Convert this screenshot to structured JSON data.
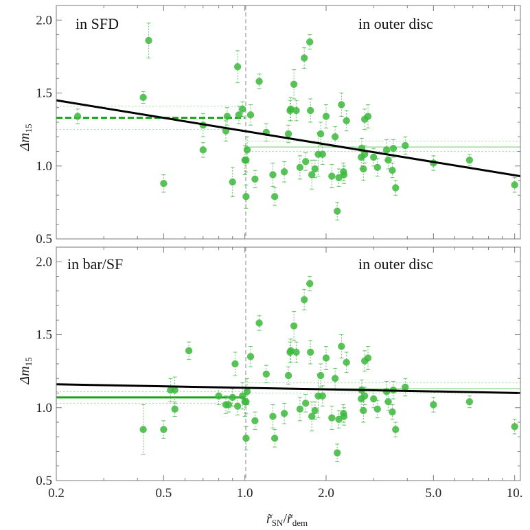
{
  "chart_data": [
    {
      "type": "scatter",
      "panel": "top",
      "annotation_left": "in SFD",
      "annotation_right": "in outer disc",
      "ylabel": "Δm15",
      "xscale": "log",
      "xlim": [
        0.2,
        10.5
      ],
      "ylim": [
        0.5,
        2.1
      ],
      "yticks": [
        "0.5",
        "1.0",
        "1.5",
        "2.0"
      ],
      "reference_x": 1.0,
      "fit_line": {
        "x": [
          0.2,
          10.5
        ],
        "y": [
          1.45,
          0.93
        ]
      },
      "inner_mean": {
        "value": 1.33,
        "lower": 1.25,
        "upper": 1.41,
        "x_range": [
          0.2,
          1.0
        ],
        "style": "dashed"
      },
      "outer_mean": {
        "value": 1.13,
        "lower": 1.1,
        "upper": 1.17,
        "x_range": [
          1.0,
          10.5
        ],
        "style": "solid"
      },
      "points": [
        {
          "x": 0.24,
          "y": 1.34,
          "err": 0.05
        },
        {
          "x": 0.42,
          "y": 1.47,
          "err": 0.04
        },
        {
          "x": 0.44,
          "y": 1.86,
          "err": 0.12
        },
        {
          "x": 0.5,
          "y": 0.88,
          "err": 0.06
        },
        {
          "x": 0.7,
          "y": 1.11,
          "err": 0.05
        },
        {
          "x": 0.7,
          "y": 1.28,
          "err": 0.08
        },
        {
          "x": 0.85,
          "y": 1.24,
          "err": 0.07
        },
        {
          "x": 0.86,
          "y": 1.34,
          "err": 0.06
        },
        {
          "x": 0.9,
          "y": 0.89,
          "err": 0.1
        },
        {
          "x": 0.94,
          "y": 1.68,
          "err": 0.11
        },
        {
          "x": 0.95,
          "y": 1.35,
          "err": 0.06
        },
        {
          "x": 0.98,
          "y": 1.39,
          "err": 0.05
        },
        {
          "x": 1.0,
          "y": 1.04,
          "err": 0.1
        },
        {
          "x": 1.01,
          "y": 1.04,
          "err": 0.08
        },
        {
          "x": 1.02,
          "y": 1.11,
          "err": 0.09
        },
        {
          "x": 1.01,
          "y": 0.79,
          "err": 0.08
        },
        {
          "x": 1.05,
          "y": 1.35,
          "err": 0.07
        },
        {
          "x": 1.09,
          "y": 0.91,
          "err": 0.06
        },
        {
          "x": 1.13,
          "y": 1.58,
          "err": 0.05
        },
        {
          "x": 1.2,
          "y": 1.23,
          "err": 0.06
        },
        {
          "x": 1.27,
          "y": 0.94,
          "err": 0.08
        },
        {
          "x": 1.29,
          "y": 0.79,
          "err": 0.06
        },
        {
          "x": 1.4,
          "y": 0.96,
          "err": 0.07
        },
        {
          "x": 1.45,
          "y": 1.22,
          "err": 0.06
        },
        {
          "x": 1.47,
          "y": 1.38,
          "err": 0.07
        },
        {
          "x": 1.48,
          "y": 1.39,
          "err": 0.08
        },
        {
          "x": 1.52,
          "y": 1.56,
          "err": 0.1
        },
        {
          "x": 1.55,
          "y": 1.38,
          "err": 0.07
        },
        {
          "x": 1.6,
          "y": 0.99,
          "err": 0.08
        },
        {
          "x": 1.66,
          "y": 1.74,
          "err": 0.07
        },
        {
          "x": 1.68,
          "y": 1.03,
          "err": 0.06
        },
        {
          "x": 1.74,
          "y": 1.85,
          "err": 0.05
        },
        {
          "x": 1.75,
          "y": 1.38,
          "err": 0.08
        },
        {
          "x": 1.77,
          "y": 0.94,
          "err": 0.1
        },
        {
          "x": 1.82,
          "y": 0.98,
          "err": 0.06
        },
        {
          "x": 1.87,
          "y": 1.08,
          "err": 0.15
        },
        {
          "x": 1.91,
          "y": 1.22,
          "err": 0.08
        },
        {
          "x": 1.94,
          "y": 1.08,
          "err": 0.07
        },
        {
          "x": 2.0,
          "y": 1.34,
          "err": 0.08
        },
        {
          "x": 2.1,
          "y": 0.93,
          "err": 0.08
        },
        {
          "x": 2.16,
          "y": 1.2,
          "err": 0.07
        },
        {
          "x": 2.2,
          "y": 0.69,
          "err": 0.06
        },
        {
          "x": 2.23,
          "y": 0.92,
          "err": 0.06
        },
        {
          "x": 2.28,
          "y": 1.42,
          "err": 0.08
        },
        {
          "x": 2.32,
          "y": 0.96,
          "err": 0.06
        },
        {
          "x": 2.33,
          "y": 0.94,
          "err": 0.06
        },
        {
          "x": 2.38,
          "y": 1.31,
          "err": 0.07
        },
        {
          "x": 2.7,
          "y": 1.06,
          "err": 0.08
        },
        {
          "x": 2.71,
          "y": 1.12,
          "err": 0.07
        },
        {
          "x": 2.75,
          "y": 0.98,
          "err": 0.08
        },
        {
          "x": 2.78,
          "y": 1.08,
          "err": 0.06
        },
        {
          "x": 2.78,
          "y": 1.32,
          "err": 0.07
        },
        {
          "x": 2.86,
          "y": 1.34,
          "err": 0.08
        },
        {
          "x": 3.0,
          "y": 1.06,
          "err": 0.06
        },
        {
          "x": 3.1,
          "y": 0.99,
          "err": 0.06
        },
        {
          "x": 3.35,
          "y": 1.11,
          "err": 0.07
        },
        {
          "x": 3.4,
          "y": 1.04,
          "err": 0.06
        },
        {
          "x": 3.52,
          "y": 0.97,
          "err": 0.05
        },
        {
          "x": 3.55,
          "y": 1.12,
          "err": 0.06
        },
        {
          "x": 3.62,
          "y": 0.85,
          "err": 0.05
        },
        {
          "x": 3.93,
          "y": 1.14,
          "err": 0.06
        },
        {
          "x": 5.0,
          "y": 1.02,
          "err": 0.05
        },
        {
          "x": 6.8,
          "y": 1.04,
          "err": 0.04
        },
        {
          "x": 10.0,
          "y": 0.87,
          "err": 0.05
        }
      ]
    },
    {
      "type": "scatter",
      "panel": "bottom",
      "annotation_left": "in bar/SF",
      "annotation_right": "in outer disc",
      "ylabel": "Δm15",
      "xlabel": "r̃SN/r̃dem",
      "xscale": "log",
      "xlim": [
        0.2,
        10.5
      ],
      "ylim": [
        0.5,
        2.1
      ],
      "yticks": [
        "0.5",
        "1.0",
        "1.5",
        "2.0"
      ],
      "xticks": [
        "0.2",
        "0.5",
        "1.0",
        "2.0",
        "5.0",
        "10."
      ],
      "xtick_values": [
        0.2,
        0.5,
        1.0,
        2.0,
        5.0,
        10.0
      ],
      "reference_x": 1.0,
      "fit_line": {
        "x": [
          0.2,
          10.5
        ],
        "y": [
          1.16,
          1.1
        ]
      },
      "inner_mean": {
        "value": 1.07,
        "lower": 1.03,
        "upper": 1.11,
        "x_range": [
          0.2,
          1.0
        ],
        "style": "solid"
      },
      "outer_mean": {
        "value": 1.13,
        "lower": 1.1,
        "upper": 1.17,
        "x_range": [
          1.0,
          10.5
        ],
        "style": "solid"
      },
      "points": [
        {
          "x": 0.42,
          "y": 0.85,
          "err": 0.17
        },
        {
          "x": 0.5,
          "y": 0.85,
          "err": 0.06
        },
        {
          "x": 0.53,
          "y": 1.12,
          "err": 0.08
        },
        {
          "x": 0.55,
          "y": 1.12,
          "err": 0.09
        },
        {
          "x": 0.55,
          "y": 0.99,
          "err": 0.05
        },
        {
          "x": 0.62,
          "y": 1.39,
          "err": 0.06
        },
        {
          "x": 0.8,
          "y": 1.08,
          "err": 0.06
        },
        {
          "x": 0.85,
          "y": 1.02,
          "err": 0.06
        },
        {
          "x": 0.87,
          "y": 1.02,
          "err": 0.05
        },
        {
          "x": 0.9,
          "y": 1.07,
          "err": 0.06
        },
        {
          "x": 0.92,
          "y": 1.3,
          "err": 0.08
        },
        {
          "x": 0.94,
          "y": 1.01,
          "err": 0.06
        },
        {
          "x": 0.98,
          "y": 1.08,
          "err": 0.09
        },
        {
          "x": 1.0,
          "y": 1.04,
          "err": 0.1
        },
        {
          "x": 1.01,
          "y": 1.04,
          "err": 0.08
        },
        {
          "x": 1.02,
          "y": 1.11,
          "err": 0.09
        },
        {
          "x": 1.01,
          "y": 0.79,
          "err": 0.08
        },
        {
          "x": 1.05,
          "y": 1.35,
          "err": 0.07
        },
        {
          "x": 1.09,
          "y": 0.91,
          "err": 0.06
        },
        {
          "x": 1.13,
          "y": 1.58,
          "err": 0.05
        },
        {
          "x": 1.2,
          "y": 1.23,
          "err": 0.06
        },
        {
          "x": 1.27,
          "y": 0.94,
          "err": 0.08
        },
        {
          "x": 1.29,
          "y": 0.79,
          "err": 0.06
        },
        {
          "x": 1.4,
          "y": 0.96,
          "err": 0.07
        },
        {
          "x": 1.45,
          "y": 1.22,
          "err": 0.06
        },
        {
          "x": 1.47,
          "y": 1.38,
          "err": 0.07
        },
        {
          "x": 1.48,
          "y": 1.39,
          "err": 0.08
        },
        {
          "x": 1.52,
          "y": 1.56,
          "err": 0.1
        },
        {
          "x": 1.55,
          "y": 1.38,
          "err": 0.07
        },
        {
          "x": 1.6,
          "y": 0.99,
          "err": 0.08
        },
        {
          "x": 1.66,
          "y": 1.74,
          "err": 0.07
        },
        {
          "x": 1.68,
          "y": 1.03,
          "err": 0.06
        },
        {
          "x": 1.74,
          "y": 1.85,
          "err": 0.05
        },
        {
          "x": 1.75,
          "y": 1.38,
          "err": 0.08
        },
        {
          "x": 1.77,
          "y": 0.94,
          "err": 0.1
        },
        {
          "x": 1.82,
          "y": 0.98,
          "err": 0.06
        },
        {
          "x": 1.87,
          "y": 1.08,
          "err": 0.15
        },
        {
          "x": 1.91,
          "y": 1.22,
          "err": 0.08
        },
        {
          "x": 1.94,
          "y": 1.08,
          "err": 0.07
        },
        {
          "x": 2.0,
          "y": 1.34,
          "err": 0.08
        },
        {
          "x": 2.1,
          "y": 0.93,
          "err": 0.08
        },
        {
          "x": 2.16,
          "y": 1.2,
          "err": 0.07
        },
        {
          "x": 2.2,
          "y": 0.69,
          "err": 0.06
        },
        {
          "x": 2.23,
          "y": 0.92,
          "err": 0.06
        },
        {
          "x": 2.28,
          "y": 1.42,
          "err": 0.08
        },
        {
          "x": 2.32,
          "y": 0.96,
          "err": 0.06
        },
        {
          "x": 2.33,
          "y": 0.94,
          "err": 0.06
        },
        {
          "x": 2.38,
          "y": 1.31,
          "err": 0.07
        },
        {
          "x": 2.7,
          "y": 1.06,
          "err": 0.08
        },
        {
          "x": 2.71,
          "y": 1.12,
          "err": 0.07
        },
        {
          "x": 2.75,
          "y": 0.98,
          "err": 0.08
        },
        {
          "x": 2.78,
          "y": 1.08,
          "err": 0.06
        },
        {
          "x": 2.78,
          "y": 1.32,
          "err": 0.07
        },
        {
          "x": 2.86,
          "y": 1.34,
          "err": 0.08
        },
        {
          "x": 3.0,
          "y": 1.06,
          "err": 0.06
        },
        {
          "x": 3.1,
          "y": 0.99,
          "err": 0.06
        },
        {
          "x": 3.35,
          "y": 1.11,
          "err": 0.07
        },
        {
          "x": 3.4,
          "y": 1.04,
          "err": 0.06
        },
        {
          "x": 3.52,
          "y": 0.97,
          "err": 0.05
        },
        {
          "x": 3.55,
          "y": 1.12,
          "err": 0.06
        },
        {
          "x": 3.62,
          "y": 0.85,
          "err": 0.05
        },
        {
          "x": 3.93,
          "y": 1.14,
          "err": 0.06
        },
        {
          "x": 5.0,
          "y": 1.02,
          "err": 0.05
        },
        {
          "x": 6.8,
          "y": 1.04,
          "err": 0.04
        },
        {
          "x": 10.0,
          "y": 0.87,
          "err": 0.05
        }
      ]
    }
  ],
  "axis_text": {
    "ylabel_main": "Δm",
    "ylabel_sub": "15",
    "xlabel_num_main": "r̃",
    "xlabel_num_sub": "SN",
    "xlabel_sep": "/",
    "xlabel_den_main": "r̃",
    "xlabel_den_sub": "dem"
  }
}
